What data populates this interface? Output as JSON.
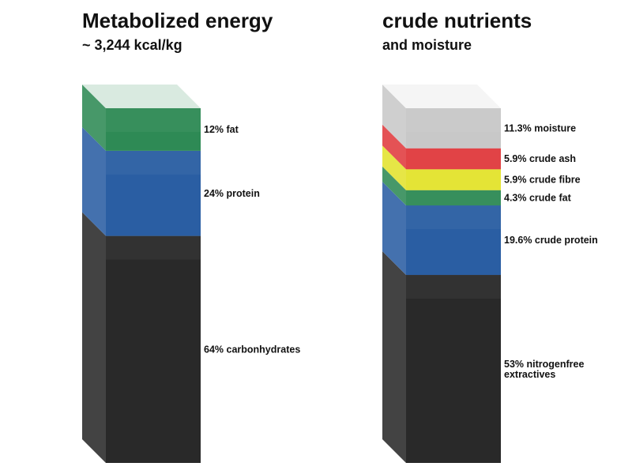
{
  "chart_data": [
    {
      "type": "stacked-bar",
      "title": "Metabolized energy",
      "subtitle": "~ 3,244 kcal/kg",
      "unit": "%",
      "stack_order": "bottom-to-top",
      "segments": [
        {
          "label": "64% carbonhydrates",
          "value": 64,
          "color": "#292929"
        },
        {
          "label": "24% protein",
          "value": 24,
          "color": "#2a5ea3"
        },
        {
          "label": "12% fat",
          "value": 12,
          "color": "#2e8a55"
        }
      ]
    },
    {
      "type": "stacked-bar",
      "title": "crude nutrients",
      "subtitle": "and moisture",
      "unit": "%",
      "stack_order": "bottom-to-top",
      "segments": [
        {
          "label": "53% nitrogenfree extractives",
          "value": 53,
          "color": "#292929"
        },
        {
          "label": "19.6% crude protein",
          "value": 19.6,
          "color": "#2a5ea3"
        },
        {
          "label": "4.3% crude fat",
          "value": 4.3,
          "color": "#2e8a55"
        },
        {
          "label": "5.9% crude fibre",
          "value": 5.9,
          "color": "#e3e32d"
        },
        {
          "label": "5.9% crude ash",
          "value": 5.9,
          "color": "#e03a3e"
        },
        {
          "label": "11.3% moisture",
          "value": 11.3,
          "color": "#c8c8c8"
        }
      ]
    }
  ]
}
